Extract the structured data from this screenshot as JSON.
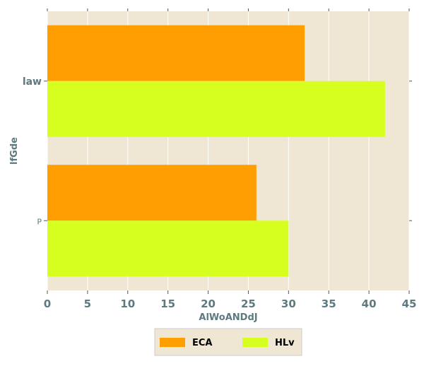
{
  "chart_data": {
    "type": "bar",
    "orientation": "horizontal",
    "categories": [
      "P",
      "law"
    ],
    "series": [
      {
        "name": "ECA",
        "values": [
          26,
          32
        ],
        "color": "#ff9e00"
      },
      {
        "name": "HLv",
        "values": [
          30,
          42
        ],
        "color": "#d6ff1f"
      }
    ],
    "xlabel": "AlWoANDdJ",
    "ylabel": "lfGde",
    "xlim": [
      0,
      45
    ],
    "xticks": [
      0,
      5,
      10,
      15,
      20,
      25,
      30,
      35,
      40,
      45
    ],
    "grid": true,
    "legend_position": "bottom-center",
    "background_color": "#efe6d4",
    "grid_color": "#ffffff",
    "tick_color": "#5d7a80"
  }
}
